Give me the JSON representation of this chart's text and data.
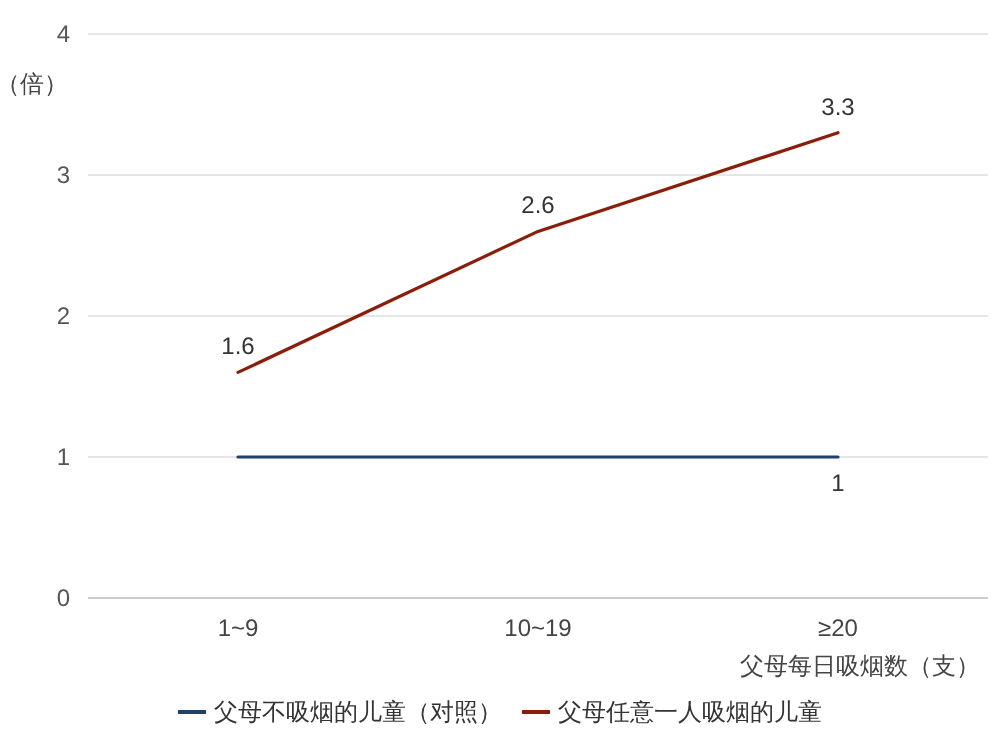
{
  "chart_data": {
    "type": "line",
    "ylabel": "（倍）",
    "xlabel": "父母每日吸烟数（支）",
    "categories": [
      "1~9",
      "10~19",
      "≥20"
    ],
    "series": [
      {
        "name": "父母不吸烟的儿童（对照）",
        "color": "#1f3f6e",
        "values": [
          1,
          1,
          1
        ],
        "value_labels": [
          null,
          null,
          "1"
        ]
      },
      {
        "name": "父母任意一人吸烟的儿童",
        "color": "#8b1e0a",
        "values": [
          1.6,
          2.6,
          3.3
        ],
        "value_labels": [
          "1.6",
          "2.6",
          "3.3"
        ]
      }
    ],
    "ylim": [
      0,
      4
    ],
    "yticks": [
      0,
      1,
      2,
      3,
      4
    ],
    "grid": "y",
    "legend": "bottom",
    "marker": "none",
    "line_style": "solid"
  }
}
